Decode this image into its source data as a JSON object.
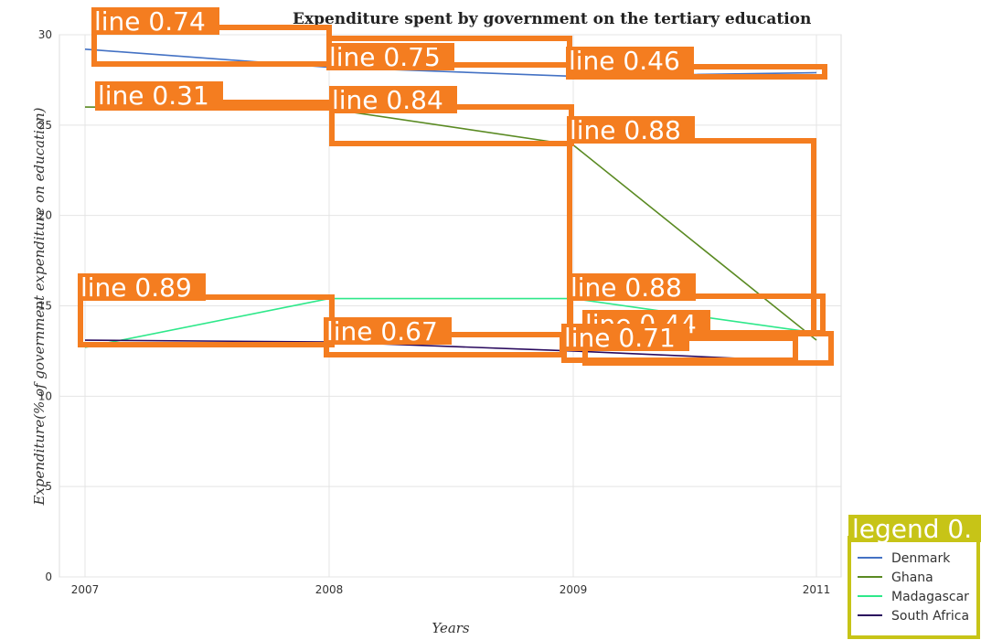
{
  "chart_data": {
    "type": "line",
    "title": "Expenditure spent by government on the tertiary education",
    "xlabel": "Years",
    "ylabel": "Expenditure(% of government expenditure on education)",
    "categories": [
      "2007",
      "2008",
      "2009",
      "2011"
    ],
    "ylim": [
      0,
      30
    ],
    "yticks": [
      "0",
      "5",
      "10",
      "15",
      "20",
      "25",
      "30"
    ],
    "grid": true,
    "legend_position": "bottom-right",
    "series": [
      {
        "name": "Denmark",
        "color": "#4472c4",
        "values": [
          29.2,
          28.2,
          27.7,
          27.9
        ]
      },
      {
        "name": "Ghana",
        "color": "#5a8a22",
        "values": [
          26.0,
          25.9,
          23.9,
          13.1
        ]
      },
      {
        "name": "Madagascar",
        "color": "#2ee88a",
        "values": [
          12.7,
          15.4,
          15.4,
          13.5
        ]
      },
      {
        "name": "South Africa",
        "color": "#2a0a5e",
        "values": [
          13.1,
          13.0,
          12.5,
          11.9
        ]
      }
    ]
  },
  "detection_overlay": {
    "box_color": "#f47d20",
    "legend_box_color": "#c7c417",
    "labels": [
      "line 0.74",
      "line 0.75",
      "line 0.46",
      "line 0.31",
      "line 0.84",
      "line 0.88",
      "line 0.89",
      "line 0.88",
      "line 0.67",
      "line 0.44",
      "line 0.71",
      "legend 0."
    ]
  }
}
